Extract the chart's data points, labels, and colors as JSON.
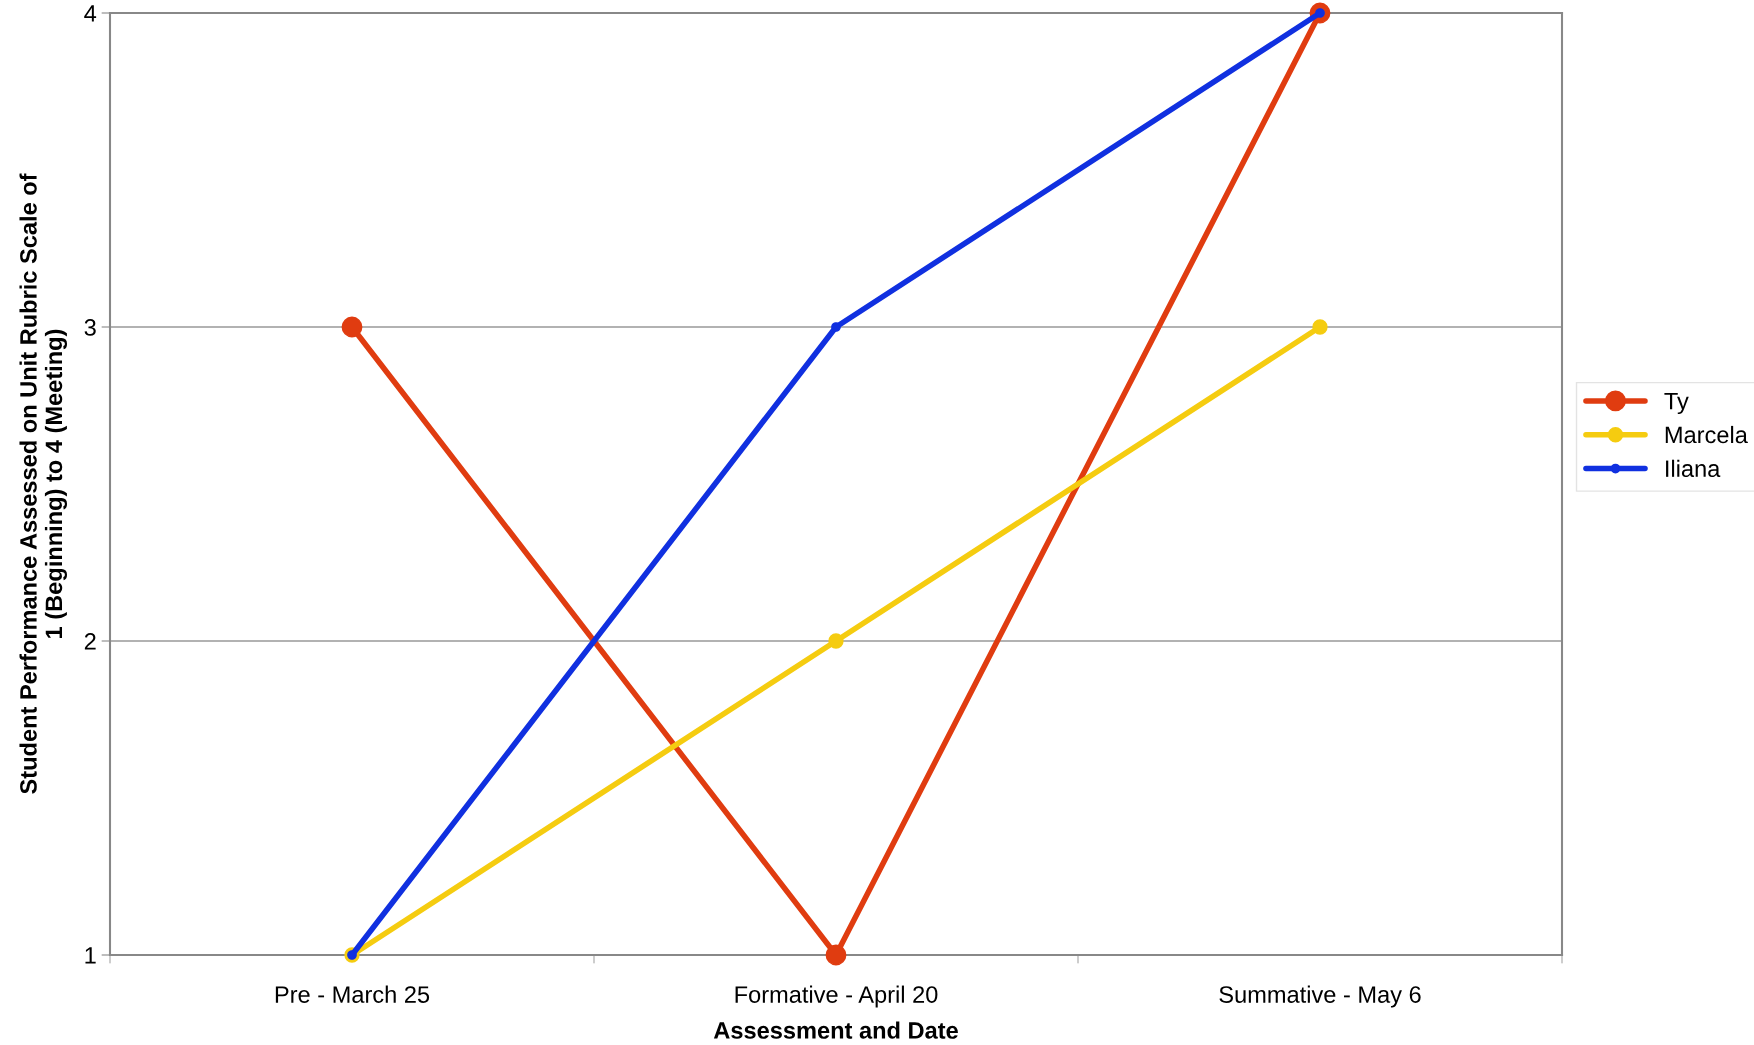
{
  "chart_data": {
    "type": "line",
    "xlabel": "Assessment and Date",
    "ylabel": "Student Performance Assessed on Unit Rubric Scale of\n1 (Beginning) to 4 (Meeting)",
    "categories": [
      "Pre - March 25",
      "Formative - April 20",
      "Summative - May 6"
    ],
    "series": [
      {
        "name": "Ty",
        "color": "#e03c10",
        "values": [
          3,
          1,
          4
        ]
      },
      {
        "name": "Marcela",
        "color": "#f5cc10",
        "values": [
          1,
          2,
          3
        ]
      },
      {
        "name": "Iliana",
        "color": "#1030e0",
        "values": [
          1,
          3,
          4
        ]
      }
    ],
    "ylim": [
      1,
      4
    ],
    "yticks": [
      1,
      2,
      3,
      4
    ],
    "grid": "y",
    "legend": "right",
    "marker": "circle",
    "line_style": "solid"
  }
}
